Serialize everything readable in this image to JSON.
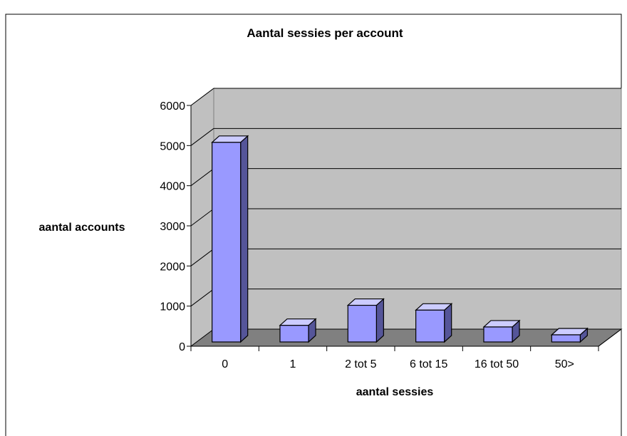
{
  "colors": {
    "bar_front": "#9999ff",
    "bar_top": "#ccccff",
    "bar_side": "#555599",
    "plot_back": "#c0c0c0",
    "plot_floor": "#808080",
    "frame": "#000000"
  },
  "chart_data": {
    "type": "bar",
    "three_d": true,
    "title": "Aantal sessies per account",
    "xlabel": "aantal sessies",
    "ylabel": "aantal accounts",
    "categories": [
      "0",
      "1",
      "2 tot 5",
      "6 tot 15",
      "16 tot 50",
      "50>"
    ],
    "values": [
      5080,
      520,
      1020,
      900,
      480,
      160
    ],
    "ylim": [
      0,
      6000
    ],
    "yticks": [
      "0",
      "1000",
      "2000",
      "3000",
      "4000",
      "5000",
      "6000"
    ],
    "grid": true,
    "legend": "none"
  }
}
